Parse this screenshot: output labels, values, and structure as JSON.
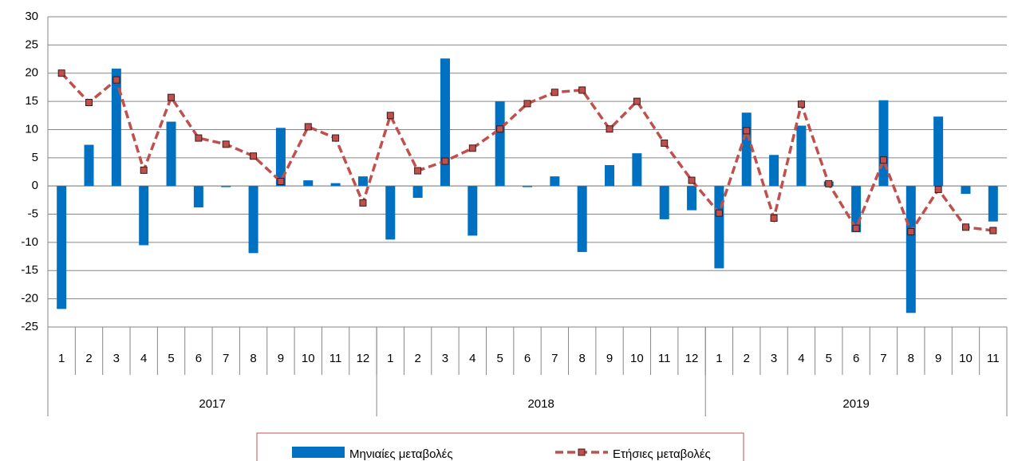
{
  "chart_data": {
    "type": "bar_line",
    "groups": [
      {
        "label": "2017",
        "categories": [
          "1",
          "2",
          "3",
          "4",
          "5",
          "6",
          "7",
          "8",
          "9",
          "10",
          "11",
          "12"
        ]
      },
      {
        "label": "2018",
        "categories": [
          "1",
          "2",
          "3",
          "4",
          "5",
          "6",
          "7",
          "8",
          "9",
          "10",
          "11",
          "12"
        ]
      },
      {
        "label": "2019",
        "categories": [
          "1",
          "2",
          "3",
          "4",
          "5",
          "6",
          "7",
          "8",
          "9",
          "10",
          "11"
        ]
      }
    ],
    "series": [
      {
        "name": "Μηνιαίες μεταβολές",
        "type": "bar",
        "color": "#0070c0",
        "values": [
          -21.8,
          7.3,
          20.8,
          -10.5,
          11.4,
          -3.8,
          -0.2,
          -11.9,
          10.3,
          1.0,
          0.5,
          1.7,
          -9.5,
          -2.1,
          22.6,
          -8.8,
          15.0,
          -0.2,
          1.7,
          -11.7,
          3.7,
          5.8,
          -5.9,
          -4.3,
          -14.6,
          13.0,
          5.5,
          10.7,
          0.8,
          -8.2,
          15.2,
          -22.5,
          12.3,
          -1.4,
          -6.3
        ]
      },
      {
        "name": "Ετήσιες μεταβολές",
        "type": "line",
        "color": "#c0504d",
        "values": [
          20.0,
          14.8,
          18.8,
          2.8,
          15.7,
          8.5,
          7.4,
          5.3,
          0.8,
          10.5,
          8.5,
          -3.0,
          12.5,
          2.7,
          4.4,
          6.7,
          10.1,
          14.6,
          16.6,
          17.0,
          10.1,
          15.0,
          7.6,
          1.0,
          -4.8,
          9.8,
          -5.7,
          14.5,
          0.4,
          -7.5,
          4.6,
          -8.1,
          -0.6,
          -7.3,
          -7.9
        ]
      }
    ],
    "ylim": [
      -25,
      30
    ],
    "yticks": [
      -25,
      -20,
      -15,
      -10,
      -5,
      0,
      5,
      10,
      15,
      20,
      25,
      30
    ],
    "grid": true,
    "legend": "bottom"
  }
}
